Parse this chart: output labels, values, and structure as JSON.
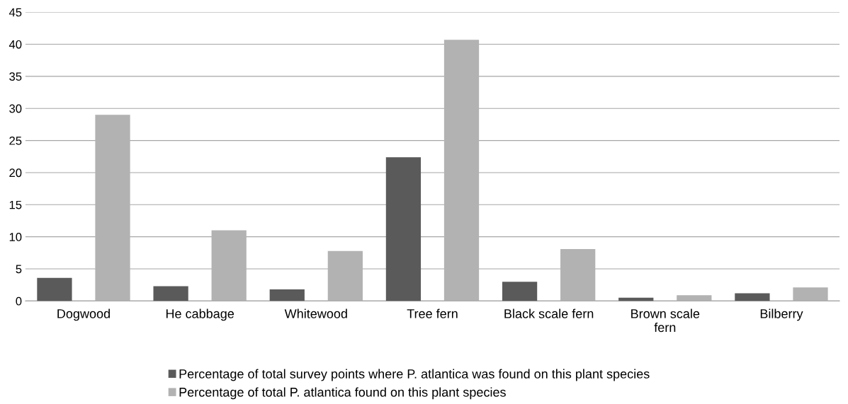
{
  "chart_data": {
    "type": "bar",
    "categories": [
      "Dogwood",
      "He cabbage",
      "Whitewood",
      "Tree fern",
      "Black scale fern",
      "Brown scale\nfern",
      "Bilberry"
    ],
    "series": [
      {
        "name": "Percentage of total survey points where P. atlantica was found on this plant species",
        "color": "#5a5a5a",
        "values": [
          3.6,
          2.3,
          1.8,
          22.4,
          3.0,
          0.5,
          1.2
        ]
      },
      {
        "name": "Percentage of total P. atlantica found on this plant species",
        "color": "#b2b2b2",
        "values": [
          29.0,
          11.0,
          7.8,
          40.7,
          8.1,
          0.9,
          2.1
        ]
      }
    ],
    "ylim": [
      0,
      45
    ],
    "yticks": [
      0,
      5,
      10,
      15,
      20,
      25,
      30,
      35,
      40,
      45
    ],
    "grid": "y",
    "legend": "bottom"
  }
}
